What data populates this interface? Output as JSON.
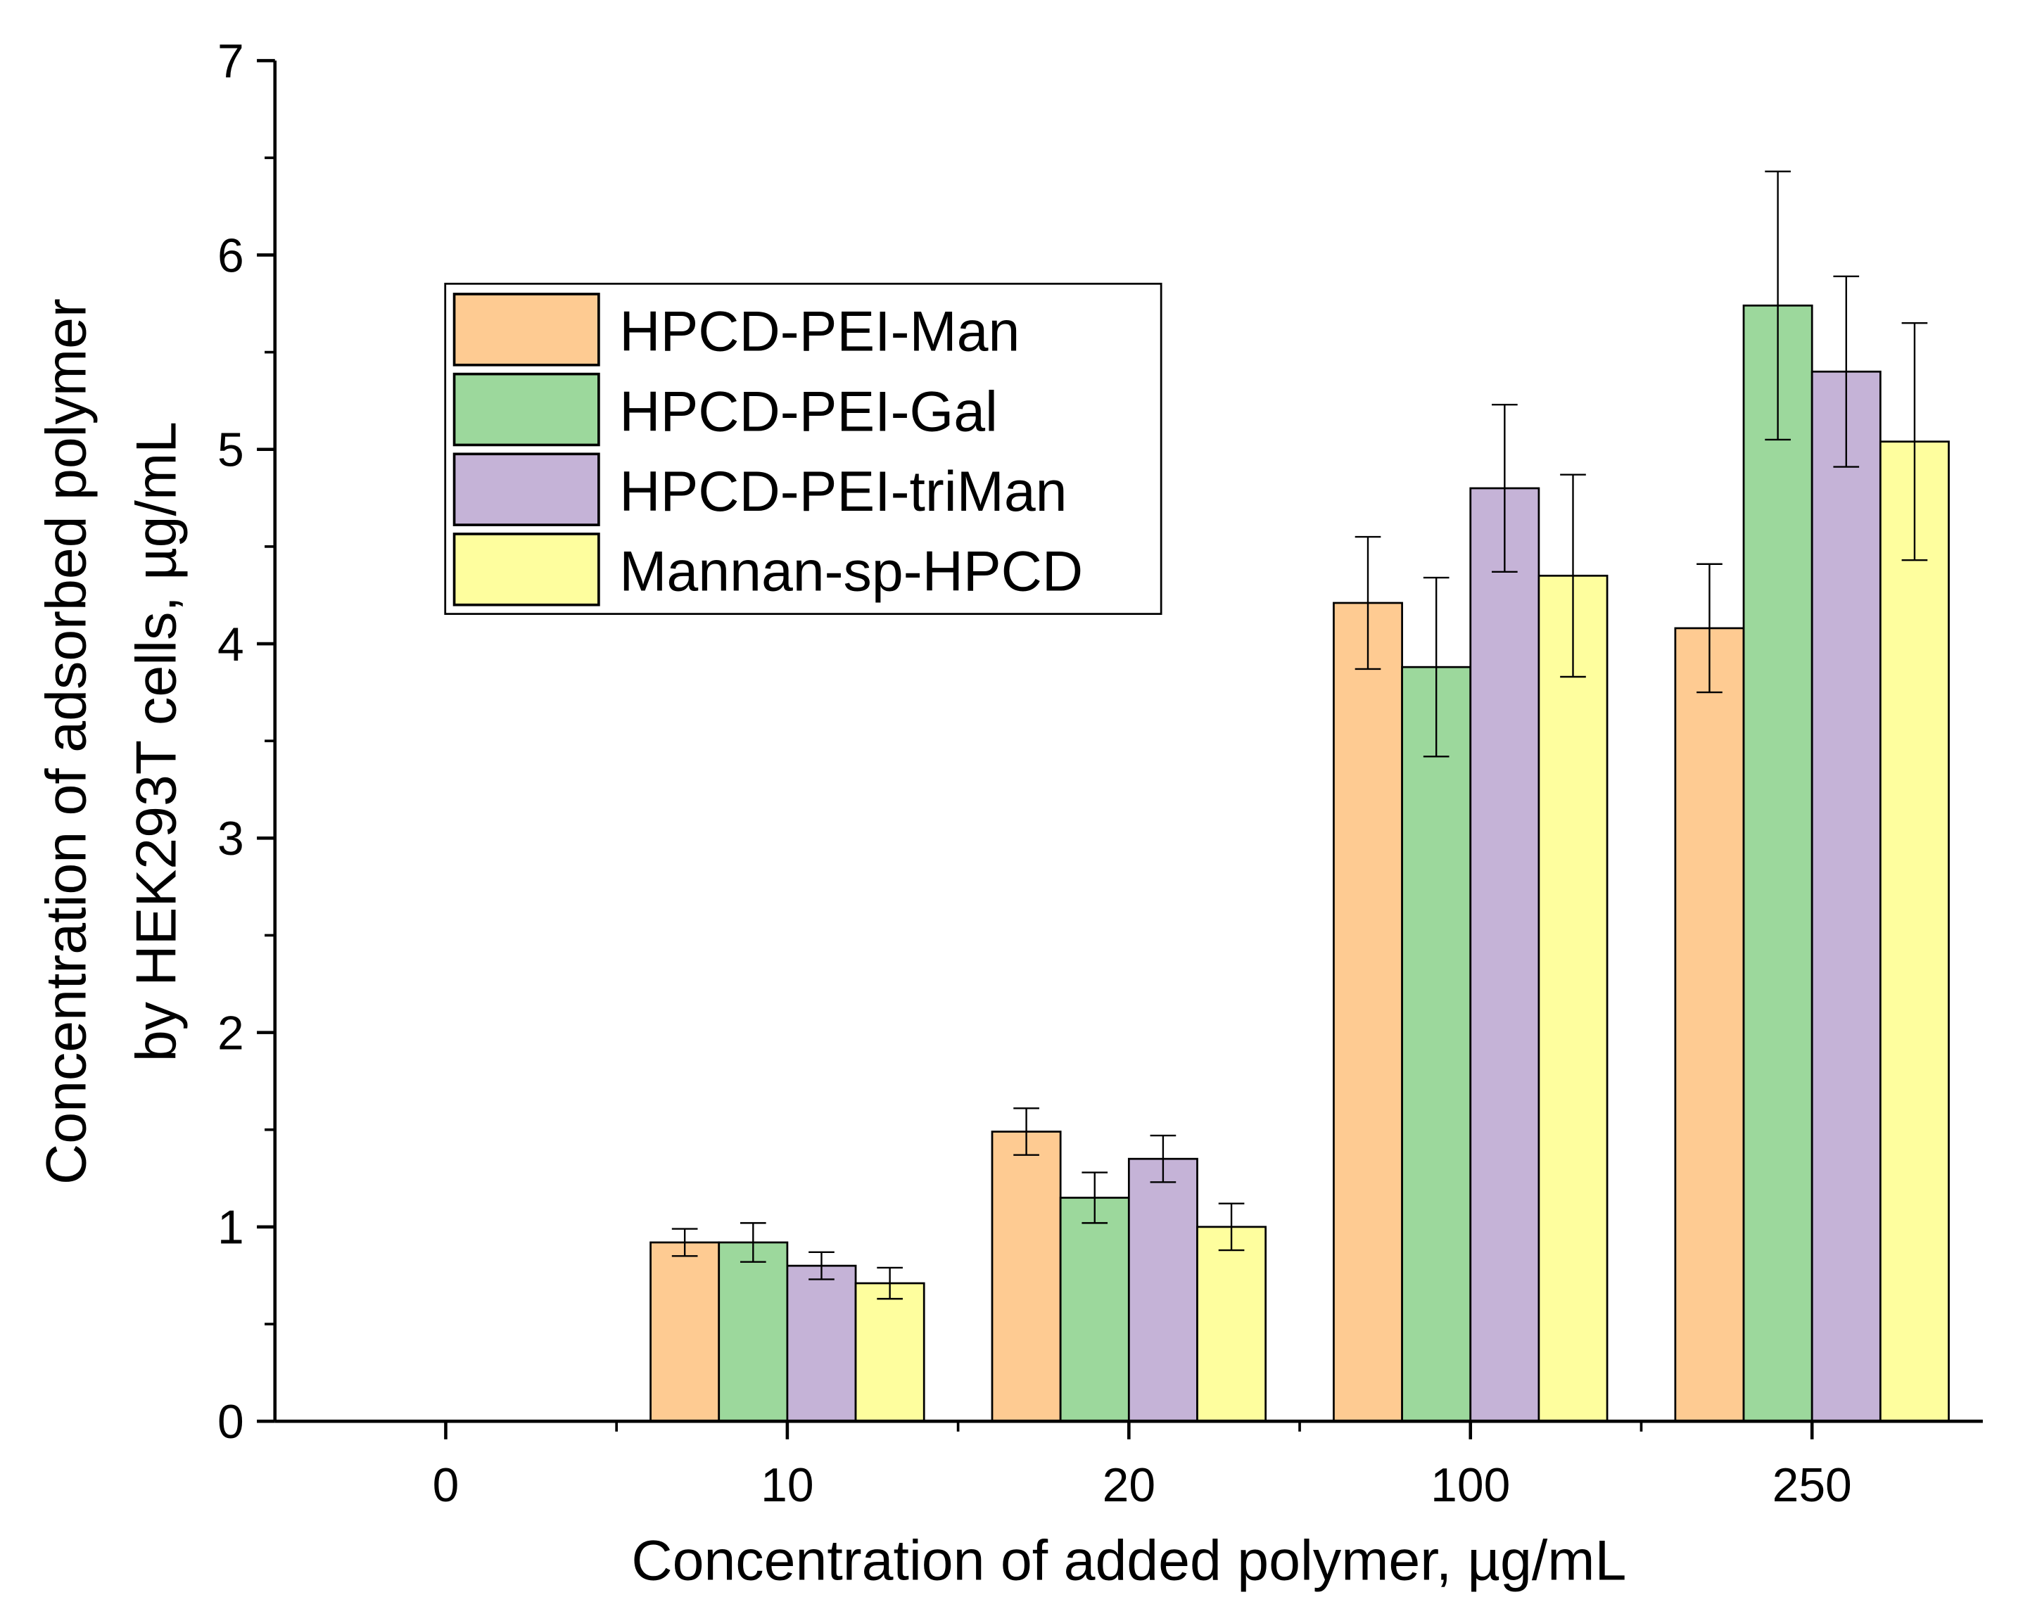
{
  "chart_data": {
    "type": "bar",
    "title": "",
    "xlabel": "Concentration of added polymer, µg/mL",
    "ylabel_lines": [
      "Concentration of adsorbed polymer",
      "by HEK293T cells, µg/mL"
    ],
    "categories": [
      "0",
      "10",
      "20",
      "100",
      "250"
    ],
    "ylim": [
      0,
      7
    ],
    "yticks": [
      "0",
      "1",
      "2",
      "3",
      "4",
      "5",
      "6",
      "7"
    ],
    "grid": false,
    "legend_position": "top-left",
    "series": [
      {
        "name": "HPCD-PEI-Man",
        "color": "#FECB92",
        "values": [
          0,
          0.92,
          1.49,
          4.21,
          4.08
        ],
        "errors": [
          0,
          0.07,
          0.12,
          0.34,
          0.33
        ]
      },
      {
        "name": "HPCD-PEI-Gal",
        "color": "#9CD89C",
        "values": [
          0,
          0.92,
          1.15,
          3.88,
          5.74
        ],
        "errors": [
          0,
          0.1,
          0.13,
          0.46,
          0.69
        ]
      },
      {
        "name": "HPCD-PEI-triMan",
        "color": "#C5B3D7",
        "values": [
          0,
          0.8,
          1.35,
          4.8,
          5.4
        ],
        "errors": [
          0,
          0.07,
          0.12,
          0.43,
          0.49
        ]
      },
      {
        "name": "Mannan-sp-HPCD",
        "color": "#FEFE9E",
        "values": [
          0,
          0.71,
          1.0,
          4.35,
          5.04
        ],
        "errors": [
          0,
          0.08,
          0.12,
          0.52,
          0.61
        ]
      }
    ]
  }
}
